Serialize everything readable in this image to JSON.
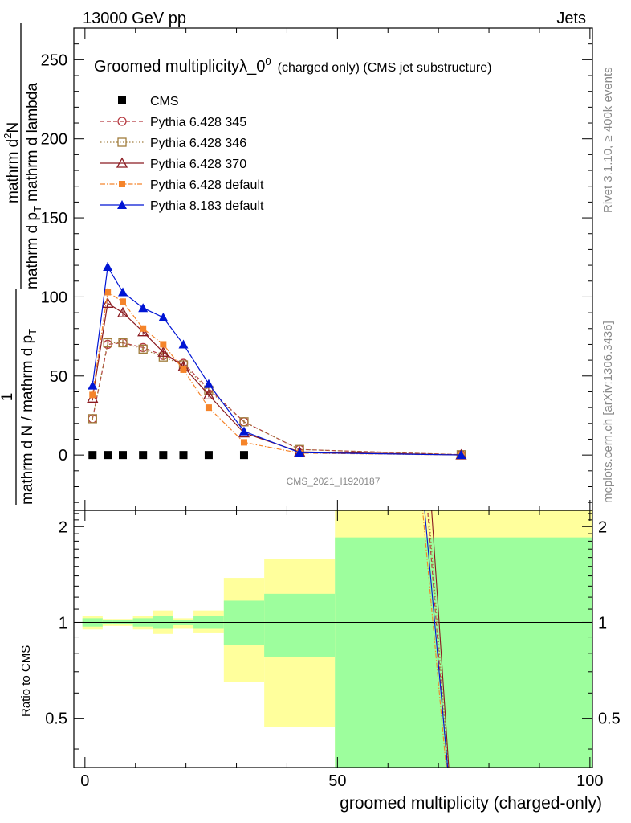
{
  "header": {
    "left": "13000 GeV pp",
    "right": "Jets"
  },
  "side": {
    "rivet": "Rivet 3.1.10, ≥ 400k events",
    "mcplots": "mcplots.cern.ch [arXiv:1306.3436]"
  },
  "colors": {
    "cms": "#000000",
    "p345": "#b5383f",
    "p346": "#a07c3c",
    "p370": "#8b1b20",
    "p6def": "#f5842a",
    "p8def": "#0015d4",
    "band_green": "#9dfe9d",
    "band_yellow": "#ffff9c"
  },
  "chart_data": {
    "type": "line",
    "title": "Groomed multiplicityλ_0",
    "title_sup": "0",
    "title_suffix": "(charged only) (CMS jet substructure)",
    "watermark": "CMS_2021_I1920187",
    "xlabel": "groomed multiplicity (charged-only)",
    "ylabel_numerator_main": "mathrm d",
    "ylabel_numerator_sup": "2",
    "ylabel_numerator_end": "N",
    "ylabel_denominator_a": "mathrm d p",
    "ylabel_denominator_sub": "T",
    "ylabel_denominator_b": "mathrm d lambda",
    "ylabel_prefix": "1",
    "ylabel_prefix_denominator": "mathrm d N / mathrm d p",
    "ylabel_prefix_sub": "T",
    "ratio_ylabel": "Ratio to CMS",
    "xlim": [
      -2.2,
      100.5
    ],
    "ylim": [
      -35,
      270
    ],
    "ratio_ylim": [
      0.35,
      2.25
    ],
    "x_ticks": [
      "0",
      "50",
      "100"
    ],
    "x_tick_values": [
      0,
      50,
      100
    ],
    "y_ticks": [
      "0",
      "50",
      "100",
      "150",
      "200",
      "250"
    ],
    "y_tick_values": [
      0,
      50,
      100,
      150,
      200,
      250
    ],
    "ratio_ticks": [
      "0.5",
      "1",
      "2"
    ],
    "ratio_tick_values": [
      0.5,
      1,
      2
    ],
    "series": [
      {
        "name": "CMS",
        "key": "cms",
        "marker": "square",
        "x": [
          1.5,
          4.5,
          7.5,
          11.5,
          15.5,
          19.5,
          24.5,
          31.5
        ],
        "y": [
          0,
          0,
          0,
          0,
          0,
          0,
          0,
          0
        ]
      },
      {
        "name": "Pythia 6.428 345",
        "key": "p345",
        "marker": "circle-open",
        "dash": "5,3",
        "x": [
          1.5,
          4.5,
          7.5,
          11.5,
          15.5,
          19.5,
          24.5,
          31.5,
          42.5,
          74.5
        ],
        "y": [
          23,
          70,
          71,
          68,
          63,
          58,
          42,
          21,
          3.5,
          0.2
        ],
        "yerr": [
          1,
          2,
          2,
          2,
          2,
          2,
          1.5,
          1,
          0.5,
          0.1
        ]
      },
      {
        "name": "Pythia 6.428 346",
        "key": "p346",
        "marker": "square-open",
        "dash": "1.5,2.5",
        "x": [
          1.5,
          4.5,
          7.5,
          11.5,
          15.5,
          19.5,
          24.5,
          31.5,
          42.5,
          74.5
        ],
        "y": [
          23,
          71,
          71,
          67,
          62,
          57,
          41,
          21,
          3.5,
          0.2
        ],
        "yerr": [
          1,
          2,
          2,
          2,
          2,
          2,
          1.5,
          1,
          0.5,
          0.1
        ]
      },
      {
        "name": "Pythia 6.428 370",
        "key": "p370",
        "marker": "triangle-open",
        "dash": "",
        "x": [
          1.5,
          4.5,
          7.5,
          11.5,
          15.5,
          19.5,
          24.5,
          31.5,
          42.5,
          74.5
        ],
        "y": [
          36,
          96,
          90,
          78,
          65,
          56,
          38,
          14,
          2,
          0.1
        ],
        "yerr": [
          1.5,
          2.5,
          2,
          2,
          2,
          2,
          1.5,
          1,
          0.4,
          0.1
        ]
      },
      {
        "name": "Pythia 6.428 default",
        "key": "p6def",
        "marker": "square-small",
        "dash": "6,2,1.5,2",
        "x": [
          1.5,
          4.5,
          7.5,
          11.5,
          15.5,
          19.5,
          24.5,
          31.5,
          42.5,
          74.5
        ],
        "y": [
          38,
          103,
          97,
          80,
          70,
          54,
          30,
          8,
          1.2,
          0.05
        ],
        "yerr": [
          1.5,
          2.5,
          2,
          2,
          2,
          2,
          1.5,
          1,
          0.3,
          0.05
        ]
      },
      {
        "name": "Pythia 8.183 default",
        "key": "p8def",
        "marker": "triangle",
        "dash": "",
        "x": [
          1.5,
          4.5,
          7.5,
          11.5,
          15.5,
          19.5,
          24.5,
          31.5,
          42.5,
          74.5
        ],
        "y": [
          44,
          119,
          103,
          93,
          87,
          70,
          45,
          15,
          1.5,
          0.05
        ],
        "yerr": [
          2,
          3,
          2.5,
          2,
          2,
          2,
          1.5,
          1,
          0.3,
          0.05
        ]
      }
    ],
    "ratio_bands": [
      {
        "x0": -0.5,
        "x1": 3.5,
        "g": [
          0.97,
          1.03
        ],
        "yel": [
          0.95,
          1.05
        ]
      },
      {
        "x0": 3.5,
        "x1": 5.5,
        "g": [
          0.985,
          1.015
        ],
        "yel": [
          0.975,
          1.025
        ]
      },
      {
        "x0": 5.5,
        "x1": 9.5,
        "g": [
          0.985,
          1.015
        ],
        "yel": [
          0.975,
          1.025
        ]
      },
      {
        "x0": 9.5,
        "x1": 13.5,
        "g": [
          0.97,
          1.03
        ],
        "yel": [
          0.95,
          1.05
        ]
      },
      {
        "x0": 13.5,
        "x1": 17.5,
        "g": [
          0.96,
          1.05
        ],
        "yel": [
          0.92,
          1.09
        ]
      },
      {
        "x0": 17.5,
        "x1": 21.5,
        "g": [
          0.98,
          1.02
        ],
        "yel": [
          0.96,
          1.03
        ]
      },
      {
        "x0": 21.5,
        "x1": 27.5,
        "g": [
          0.96,
          1.05
        ],
        "yel": [
          0.93,
          1.09
        ]
      },
      {
        "x0": 27.5,
        "x1": 35.5,
        "g": [
          0.85,
          1.17
        ],
        "yel": [
          0.65,
          1.38
        ]
      },
      {
        "x0": 35.5,
        "x1": 49.5,
        "g": [
          0.78,
          1.23
        ],
        "yel": [
          0.47,
          1.58
        ]
      },
      {
        "x0": 49.5,
        "x1": 100.5,
        "g": [
          0.35,
          1.85
        ],
        "yel": [
          0.35,
          2.25
        ]
      }
    ]
  }
}
